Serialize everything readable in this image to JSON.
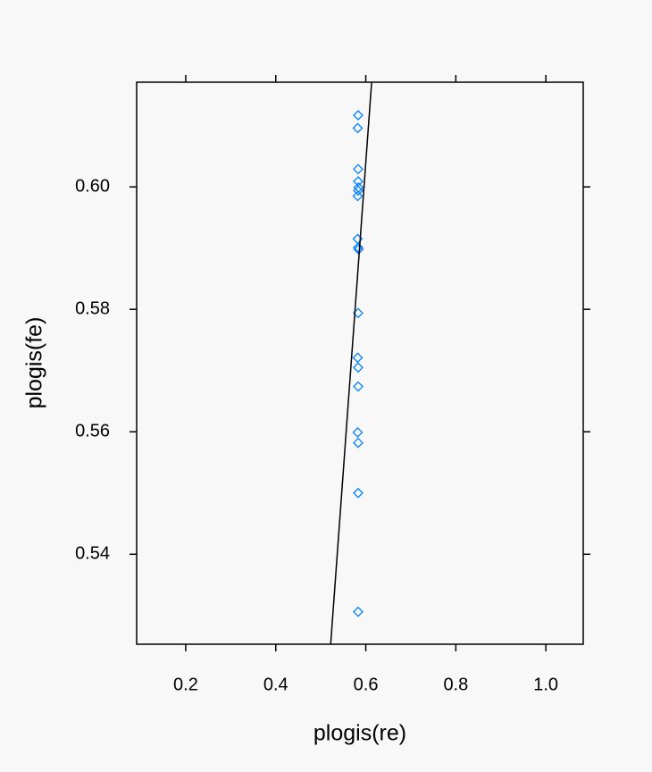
{
  "chart_data": {
    "type": "scatter",
    "x_label": "plogis(re)",
    "y_label": "plogis(fe)",
    "xlim": [
      0.091,
      1.083
    ],
    "xticks": [
      0.2,
      0.4,
      0.6,
      0.8,
      {
        "value": 1.0,
        "label": "1.0"
      }
    ],
    "ylim": [
      0.5253,
      0.6171
    ],
    "yticks": [
      0.54,
      0.56,
      0.58,
      {
        "value": 0.6,
        "label": "0.60"
      }
    ],
    "color": "#0080ff",
    "x": [
      0.583,
      0.582,
      0.583,
      0.583,
      0.584,
      0.583,
      0.582,
      0.582,
      0.583,
      0.584,
      0.583,
      0.582,
      0.583,
      0.583,
      0.582,
      0.583,
      0.583,
      0.583
    ],
    "values": [
      0.6117,
      0.6096,
      0.6029,
      0.6009,
      0.5999,
      0.5994,
      0.5985,
      0.5915,
      0.5901,
      0.5898,
      0.5794,
      0.5721,
      0.5705,
      0.5674,
      0.5599,
      0.5582,
      0.55,
      0.5306
    ],
    "line": {
      "x": [
        0.522,
        0.613
      ],
      "y": [
        0.5253,
        0.6171
      ],
      "color": "#000000"
    }
  }
}
